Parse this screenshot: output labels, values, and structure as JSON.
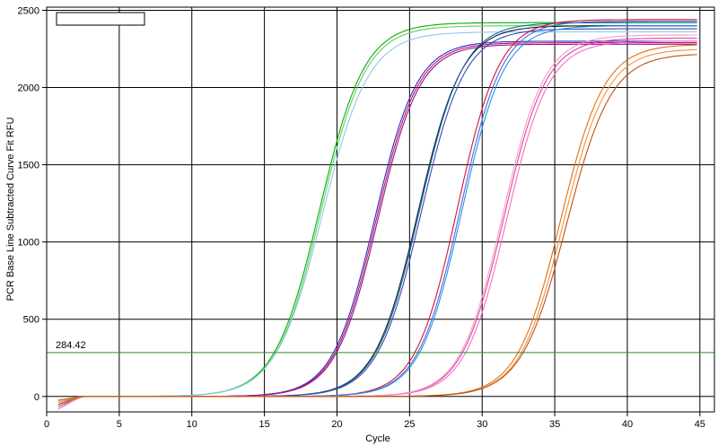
{
  "chart_data": {
    "type": "line",
    "title": "",
    "xlabel": "Cycle",
    "ylabel": "PCR Base Line Subtracted Curve Fit RFU",
    "xlim": [
      0,
      46
    ],
    "ylim": [
      -100,
      2520
    ],
    "x_ticks": [
      0,
      5,
      10,
      15,
      20,
      25,
      30,
      35,
      40,
      45
    ],
    "y_ticks": [
      0,
      500,
      1000,
      1500,
      2000,
      2500
    ],
    "grid": true,
    "legend": "top-left (empty box)",
    "threshold": {
      "value": 284.42,
      "label": "284.42",
      "color": "#2e8b2e"
    },
    "curve_model": "logistic y = plateau / (1 + exp(-(cycle - midpoint) / slope))",
    "series": [
      {
        "group": 1,
        "color": "#00b000",
        "midpoint": 18.8,
        "plateau": 2420,
        "slope": 1.55
      },
      {
        "group": 1,
        "color": "#66cc66",
        "midpoint": 18.9,
        "plateau": 2400,
        "slope": 1.55
      },
      {
        "group": 1,
        "color": "#8fc8e8",
        "midpoint": 19.0,
        "plateau": 2360,
        "slope": 1.6
      },
      {
        "group": 2,
        "color": "#2a2ad0",
        "midpoint": 22.6,
        "plateau": 2300,
        "slope": 1.45
      },
      {
        "group": 2,
        "color": "#cc1060",
        "midpoint": 22.7,
        "plateau": 2290,
        "slope": 1.45
      },
      {
        "group": 2,
        "color": "#8a1a8a",
        "midpoint": 22.8,
        "plateau": 2280,
        "slope": 1.45
      },
      {
        "group": 3,
        "color": "#102030",
        "midpoint": 25.6,
        "plateau": 2400,
        "slope": 1.5
      },
      {
        "group": 3,
        "color": "#1a6a9a",
        "midpoint": 25.7,
        "plateau": 2420,
        "slope": 1.5
      },
      {
        "group": 3,
        "color": "#3a4ab0",
        "midpoint": 25.8,
        "plateau": 2380,
        "slope": 1.5
      },
      {
        "group": 4,
        "color": "#d81030",
        "midpoint": 28.3,
        "plateau": 2440,
        "slope": 1.45
      },
      {
        "group": 4,
        "color": "#4a6ae0",
        "midpoint": 28.5,
        "plateau": 2430,
        "slope": 1.45
      },
      {
        "group": 4,
        "color": "#3090e0",
        "midpoint": 28.6,
        "plateau": 2400,
        "slope": 1.45
      },
      {
        "group": 5,
        "color": "#e040b0",
        "midpoint": 31.5,
        "plateau": 2320,
        "slope": 1.45
      },
      {
        "group": 5,
        "color": "#f070c0",
        "midpoint": 31.7,
        "plateau": 2300,
        "slope": 1.45
      },
      {
        "group": 5,
        "color": "#f0a0c0",
        "midpoint": 31.4,
        "plateau": 2340,
        "slope": 1.45
      },
      {
        "group": 6,
        "color": "#e07010",
        "midpoint": 35.4,
        "plateau": 2280,
        "slope": 1.5
      },
      {
        "group": 6,
        "color": "#f09040",
        "midpoint": 35.6,
        "plateau": 2250,
        "slope": 1.5
      },
      {
        "group": 6,
        "color": "#c05010",
        "midpoint": 35.8,
        "plateau": 2220,
        "slope": 1.55
      }
    ]
  }
}
